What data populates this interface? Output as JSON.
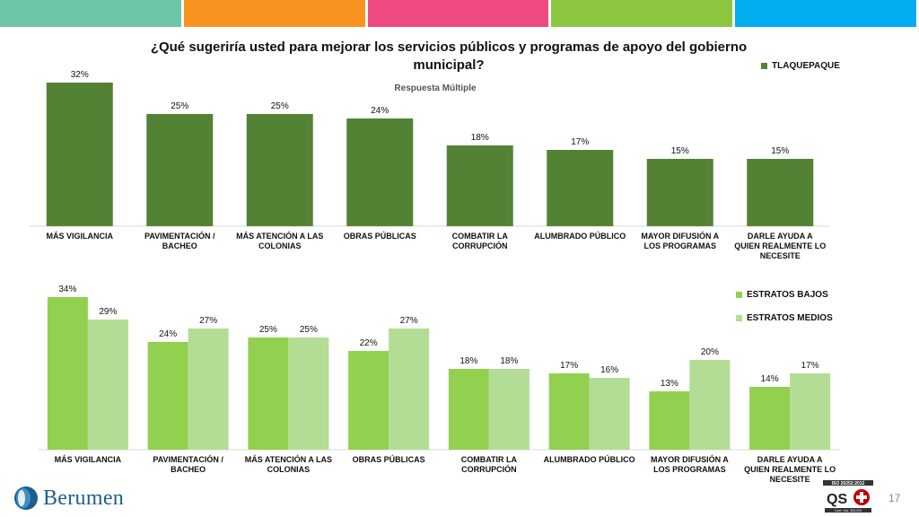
{
  "header": {
    "strip_colors": [
      "#6cc5a6",
      "#f7931e",
      "#ef4a7f",
      "#8dc63f",
      "#00aeef"
    ]
  },
  "title": {
    "line1": "¿Qué sugeriría usted para mejorar los servicios públicos y programas de apoyo del gobierno",
    "line2": "municipal?",
    "subtitle": "Respuesta Múltiple"
  },
  "chart_data": [
    {
      "type": "bar",
      "categories": [
        [
          "MÁS VIGILANCIA"
        ],
        [
          "PAVIMENTACIÓN /",
          "BACHEO"
        ],
        [
          "MÁS ATENCIÓN A LAS",
          "COLONIAS"
        ],
        [
          "OBRAS PÚBLICAS"
        ],
        [
          "COMBATIR LA",
          "CORRUPCIÓN"
        ],
        [
          "ALUMBRADO PÚBLICO"
        ],
        [
          "MAYOR DIFUSIÓN A",
          "LOS PROGRAMAS"
        ],
        [
          "DARLE AYUDA A",
          "QUIEN REALMENTE LO",
          "NECESITE"
        ]
      ],
      "series": [
        {
          "name": "TLAQUEPAQUE",
          "color": "#548235",
          "values": [
            32,
            25,
            25,
            24,
            18,
            17,
            15,
            15
          ]
        }
      ],
      "value_suffix": "%",
      "ylim": [
        0,
        34
      ],
      "legend_position": "top-right",
      "grid": false
    },
    {
      "type": "bar",
      "categories": [
        [
          "MÁS VIGILANCIA"
        ],
        [
          "PAVIMENTACIÓN /",
          "BACHEO"
        ],
        [
          "MÁS ATENCIÓN A LAS",
          "COLONIAS"
        ],
        [
          "OBRAS PÚBLICAS"
        ],
        [
          "COMBATIR LA",
          "CORRUPCIÓN"
        ],
        [
          "ALUMBRADO PÚBLICO"
        ],
        [
          "MAYOR DIFUSIÓN A",
          "LOS PROGRAMAS"
        ],
        [
          "DARLE AYUDA A",
          "QUIEN REALMENTE LO",
          "NECESITE"
        ]
      ],
      "series": [
        {
          "name": "ESTRATOS BAJOS",
          "color": "#92d050",
          "values": [
            34,
            24,
            25,
            22,
            18,
            17,
            13,
            14
          ]
        },
        {
          "name": "ESTRATOS MEDIOS",
          "color": "#b3dc95",
          "values": [
            29,
            27,
            25,
            27,
            18,
            16,
            20,
            17
          ]
        }
      ],
      "value_suffix": "%",
      "ylim": [
        0,
        34
      ],
      "legend_position": "top-right",
      "grid": false
    }
  ],
  "footer": {
    "logo_text": "Berumen",
    "iso_text": "ISO 20252:2012",
    "cert_text": "Cert. No. 301/S3",
    "page_number": "17"
  }
}
